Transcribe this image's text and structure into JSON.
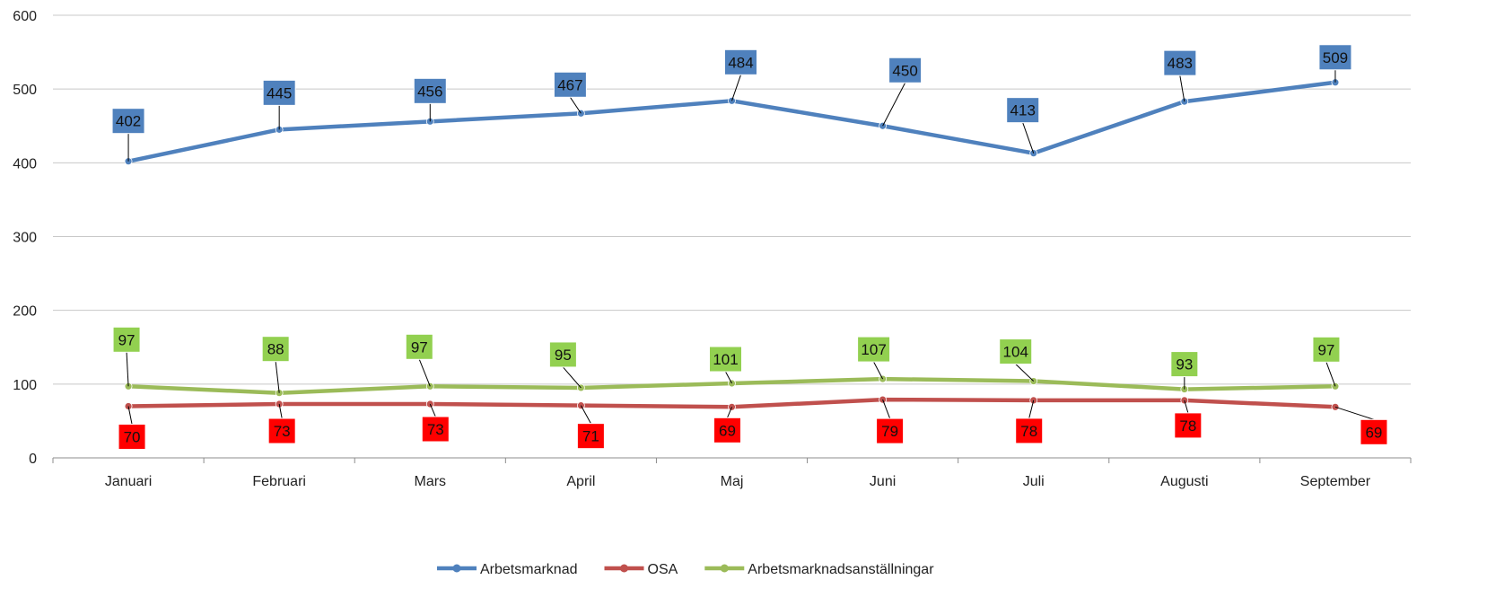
{
  "chart_data": {
    "type": "line",
    "categories": [
      "Januari",
      "Februari",
      "Mars",
      "April",
      "Maj",
      "Juni",
      "Juli",
      "Augusti",
      "September"
    ],
    "ylim": [
      0,
      600
    ],
    "yticks": [
      0,
      100,
      200,
      300,
      400,
      500,
      600
    ],
    "grid": true,
    "legend_position": "bottom",
    "series": [
      {
        "name": "Arbetsmarknad",
        "color": "#4F81BD",
        "label_bg": "#4F81BD",
        "values": [
          402,
          445,
          456,
          467,
          484,
          450,
          413,
          483,
          509
        ]
      },
      {
        "name": "OSA",
        "color": "#C0504D",
        "label_bg": "#FF0000",
        "values": [
          70,
          73,
          73,
          71,
          69,
          79,
          78,
          78,
          69
        ]
      },
      {
        "name": "Arbetsmarknadsanställningar",
        "color": "#9BBB59",
        "label_bg": "#92D050",
        "values": [
          97,
          88,
          97,
          95,
          101,
          107,
          104,
          93,
          97
        ]
      }
    ]
  }
}
